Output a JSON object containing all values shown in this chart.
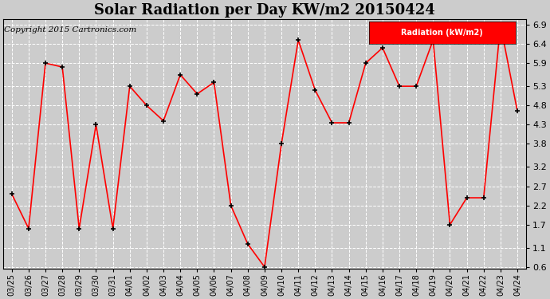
{
  "title": "Solar Radiation per Day KW/m2 20150424",
  "copyright": "Copyright 2015 Cartronics.com",
  "legend_label": "Radiation (kW/m2)",
  "dates": [
    "03/25",
    "03/26",
    "03/27",
    "03/28",
    "03/29",
    "03/30",
    "03/31",
    "04/01",
    "04/02",
    "04/03",
    "04/04",
    "04/05",
    "04/06",
    "04/07",
    "04/08",
    "04/09",
    "04/10",
    "04/11",
    "04/12",
    "04/13",
    "04/14",
    "04/15",
    "04/16",
    "04/17",
    "04/18",
    "04/19",
    "04/20",
    "04/21",
    "04/22",
    "04/23",
    "04/24"
  ],
  "values": [
    2.5,
    1.6,
    5.9,
    5.8,
    1.6,
    4.3,
    1.6,
    5.3,
    4.8,
    4.4,
    5.6,
    5.1,
    5.4,
    2.2,
    1.2,
    0.6,
    3.8,
    6.5,
    5.2,
    4.35,
    4.35,
    5.9,
    6.3,
    5.3,
    5.3,
    6.5,
    1.7,
    2.4,
    2.4,
    6.9,
    4.65
  ],
  "ylim": [
    0.55,
    7.05
  ],
  "yticks": [
    0.6,
    1.1,
    1.7,
    2.2,
    2.7,
    3.2,
    3.8,
    4.3,
    4.8,
    5.3,
    5.9,
    6.4,
    6.9
  ],
  "line_color": "red",
  "marker": "+",
  "marker_color": "black",
  "bg_color": "#cccccc",
  "plot_bg_color": "#cccccc",
  "grid_color": "white",
  "title_fontsize": 13,
  "copyright_fontsize": 7.5,
  "legend_bg": "red",
  "legend_text_color": "white",
  "tick_fontsize": 8,
  "xtick_fontsize": 7
}
